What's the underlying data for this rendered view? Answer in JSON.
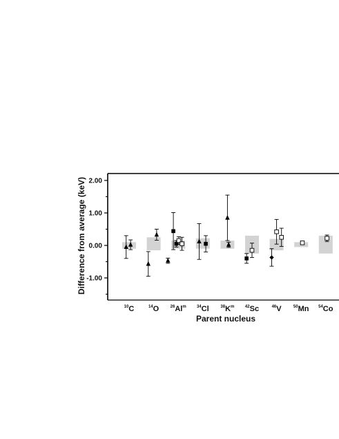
{
  "chart_data": {
    "type": "scatter",
    "title": "",
    "xlabel": "Parent nucleus",
    "ylabel": "Difference from average (keV)",
    "ylim": [
      -1.6,
      2.2
    ],
    "yticks": [
      2.0,
      1.0,
      0.0,
      -1.0
    ],
    "ytick_labels": [
      "2.00",
      "1.00",
      "0.00",
      "-1.00"
    ],
    "grid": false,
    "colors": {
      "band": "#d3d3d3",
      "marker": "#000000"
    },
    "categories": [
      {
        "sup": "10",
        "element": "C",
        "meta": "",
        "band": [
          -0.1,
          0.1
        ]
      },
      {
        "sup": "14",
        "element": "O",
        "meta": "",
        "band": [
          -0.15,
          0.25
        ]
      },
      {
        "sup": "26",
        "element": "Al",
        "meta": "m",
        "band": [
          -0.1,
          0.15
        ]
      },
      {
        "sup": "34",
        "element": "Cl",
        "meta": "",
        "band": [
          -0.1,
          0.22
        ]
      },
      {
        "sup": "38",
        "element": "K",
        "meta": "m",
        "band": [
          -0.1,
          0.15
        ]
      },
      {
        "sup": "42",
        "element": "Sc",
        "meta": "",
        "band": [
          -0.25,
          0.3
        ]
      },
      {
        "sup": "46",
        "element": "V",
        "meta": "",
        "band": [
          -0.15,
          0.2
        ]
      },
      {
        "sup": "50",
        "element": "Mn",
        "meta": "",
        "band": [
          -0.05,
          0.1
        ]
      },
      {
        "sup": "54",
        "element": "Co",
        "meta": "",
        "band": [
          -0.25,
          0.3
        ]
      }
    ],
    "points": [
      {
        "category": 0,
        "offset": -0.12,
        "marker": "triangle",
        "y": -0.05,
        "err": 0.35
      },
      {
        "category": 0,
        "offset": 0.06,
        "marker": "triangle",
        "y": 0.02,
        "err": 0.15
      },
      {
        "category": 1,
        "offset": -0.22,
        "marker": "triangle",
        "y": -0.57,
        "err": 0.38
      },
      {
        "category": 1,
        "offset": 0.12,
        "marker": "triangle",
        "y": 0.33,
        "err": 0.17
      },
      {
        "category": 2,
        "offset": -0.42,
        "marker": "triangle",
        "y": -0.47,
        "err": 0.08
      },
      {
        "category": 2,
        "offset": -0.2,
        "marker": "square",
        "y": 0.44,
        "err": 0.57
      },
      {
        "category": 2,
        "offset": -0.08,
        "marker": "square",
        "y": 0.05,
        "err": 0.1
      },
      {
        "category": 2,
        "offset": 0.02,
        "marker": "open-square",
        "y": 0.15,
        "err": 0.12
      },
      {
        "category": 2,
        "offset": 0.15,
        "marker": "open-square",
        "y": 0.05,
        "err": 0.2
      },
      {
        "category": 3,
        "offset": -0.15,
        "marker": "triangle",
        "y": 0.12,
        "err": 0.55
      },
      {
        "category": 3,
        "offset": 0.12,
        "marker": "square",
        "y": 0.05,
        "err": 0.25
      },
      {
        "category": 4,
        "offset": 0.0,
        "marker": "triangle",
        "y": 0.85,
        "err": 0.7
      },
      {
        "category": 4,
        "offset": 0.05,
        "marker": "triangle",
        "y": 0.02,
        "err": 0.08
      },
      {
        "category": 5,
        "offset": -0.22,
        "marker": "square",
        "y": -0.4,
        "err": 0.15
      },
      {
        "category": 5,
        "offset": 0.0,
        "marker": "open-square",
        "y": -0.15,
        "err": 0.22
      },
      {
        "category": 6,
        "offset": -0.2,
        "marker": "diamond",
        "y": -0.37,
        "err": 0.27
      },
      {
        "category": 6,
        "offset": 0.0,
        "marker": "open-square",
        "y": 0.42,
        "err": 0.38
      },
      {
        "category": 6,
        "offset": 0.2,
        "marker": "open-square",
        "y": 0.25,
        "err": 0.28
      },
      {
        "category": 7,
        "offset": 0.05,
        "marker": "open-square",
        "y": 0.08,
        "err": 0.06
      },
      {
        "category": 8,
        "offset": 0.05,
        "marker": "open-square",
        "y": 0.22,
        "err": 0.1
      }
    ]
  }
}
